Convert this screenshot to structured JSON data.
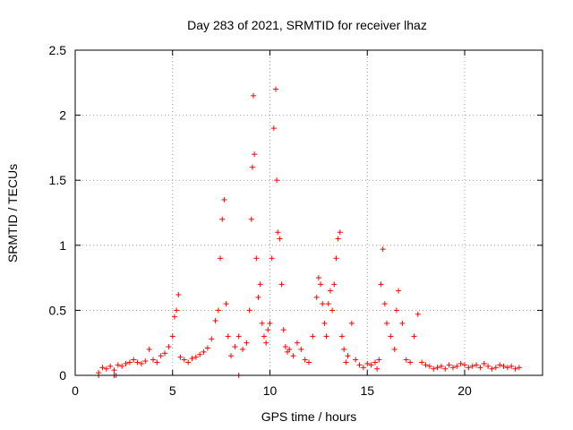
{
  "chart_data": {
    "type": "scatter",
    "title": "Day 283 of 2021, SRMTID for receiver lhaz",
    "xlabel": "GPS time / hours",
    "ylabel": "SRMTID / TECUs",
    "xlim": [
      0,
      24
    ],
    "ylim": [
      0,
      2.5
    ],
    "xticks": [
      0,
      5,
      10,
      15,
      20
    ],
    "xtick_labels": [
      "0",
      "5",
      "10",
      "15",
      "20"
    ],
    "yticks": [
      0,
      0.5,
      1,
      1.5,
      2,
      2.5
    ],
    "ytick_labels": [
      "0",
      "0.5",
      "1",
      "1.5",
      "2",
      "2.5"
    ],
    "grid": true,
    "marker": "plus",
    "marker_color": "#ff0000",
    "series": [
      {
        "name": "SRMTID",
        "x": [
          1.2,
          1.4,
          1.6,
          1.8,
          2.0,
          2.2,
          2.4,
          2.6,
          2.8,
          3.0,
          3.2,
          3.4,
          3.6,
          3.8,
          4.0,
          4.2,
          4.4,
          4.6,
          4.8,
          5.0,
          5.1,
          5.2,
          5.3,
          5.4,
          5.6,
          5.8,
          6.0,
          6.2,
          6.4,
          6.6,
          6.8,
          7.0,
          7.2,
          7.35,
          7.45,
          7.55,
          7.65,
          7.75,
          7.85,
          8.0,
          8.2,
          8.4,
          8.6,
          8.8,
          8.95,
          9.05,
          9.1,
          9.15,
          9.2,
          9.3,
          9.4,
          9.5,
          9.6,
          9.7,
          9.8,
          9.9,
          10.0,
          10.1,
          10.2,
          10.3,
          10.35,
          10.4,
          10.5,
          10.6,
          10.7,
          10.8,
          10.9,
          11.0,
          11.2,
          11.4,
          11.6,
          11.8,
          12.0,
          12.2,
          12.4,
          12.5,
          12.6,
          12.7,
          12.8,
          12.9,
          13.0,
          13.1,
          13.2,
          13.3,
          13.4,
          13.5,
          13.6,
          13.7,
          13.8,
          13.9,
          14.0,
          14.2,
          14.4,
          14.6,
          14.8,
          15.0,
          15.2,
          15.4,
          15.5,
          15.6,
          15.7,
          15.8,
          15.9,
          16.0,
          16.2,
          16.4,
          16.5,
          16.6,
          16.8,
          17.0,
          17.2,
          17.4,
          17.6,
          17.8,
          18.0,
          18.2,
          18.4,
          18.6,
          18.8,
          19.0,
          19.2,
          19.4,
          19.6,
          19.8,
          20.0,
          20.2,
          20.4,
          20.6,
          20.8,
          21.0,
          21.2,
          21.4,
          21.6,
          21.8,
          22.0,
          22.2,
          22.4,
          22.6,
          22.8
        ],
        "values": [
          0.02,
          0.06,
          0.05,
          0.07,
          0.04,
          0.08,
          0.07,
          0.09,
          0.1,
          0.12,
          0.1,
          0.09,
          0.11,
          0.2,
          0.12,
          0.1,
          0.15,
          0.17,
          0.22,
          0.3,
          0.45,
          0.5,
          0.62,
          0.14,
          0.12,
          0.1,
          0.13,
          0.14,
          0.16,
          0.18,
          0.21,
          0.28,
          0.42,
          0.5,
          0.9,
          1.2,
          1.35,
          0.55,
          0.3,
          0.15,
          0.22,
          0.3,
          0.2,
          0.25,
          0.5,
          1.2,
          1.6,
          2.15,
          1.7,
          0.9,
          0.6,
          0.7,
          0.4,
          0.3,
          0.25,
          0.35,
          0.4,
          0.9,
          1.9,
          2.2,
          1.5,
          1.1,
          1.05,
          0.7,
          0.35,
          0.22,
          0.18,
          0.2,
          0.15,
          0.25,
          0.2,
          0.12,
          0.1,
          0.3,
          0.6,
          0.75,
          0.7,
          0.55,
          0.4,
          0.3,
          0.55,
          0.65,
          0.5,
          0.7,
          0.9,
          1.05,
          1.1,
          0.3,
          0.2,
          0.1,
          0.15,
          0.4,
          0.12,
          0.08,
          0.06,
          0.09,
          0.08,
          0.1,
          0.05,
          0.12,
          0.7,
          0.97,
          0.55,
          0.4,
          0.3,
          0.2,
          0.5,
          0.65,
          0.4,
          0.12,
          0.1,
          0.3,
          0.47,
          0.1,
          0.08,
          0.07,
          0.05,
          0.06,
          0.07,
          0.05,
          0.08,
          0.06,
          0.07,
          0.09,
          0.08,
          0.06,
          0.07,
          0.08,
          0.06,
          0.09,
          0.07,
          0.05,
          0.06,
          0.08,
          0.07,
          0.06,
          0.07,
          0.05,
          0.06
        ],
        "low_points_x": [
          1.2,
          2.0,
          2.1,
          8.4
        ],
        "low_points_values": [
          0.0,
          0.0,
          0.0,
          0.0
        ]
      }
    ]
  }
}
